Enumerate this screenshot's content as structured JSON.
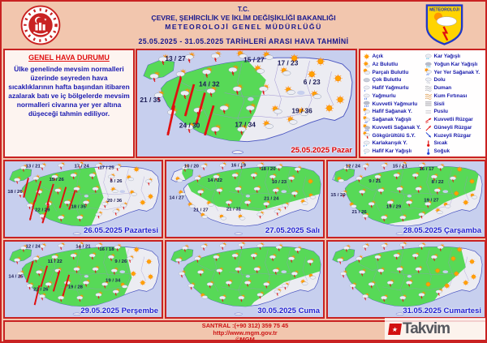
{
  "header": {
    "line1": "T.C.",
    "line2": "ÇEVRE, ŞEHİRCİLİK VE İKLİM DEĞİŞİKLİĞİ BAKANLIĞI",
    "line3": "METEOROLOJİ  GENEL  MÜDÜRLÜĞÜ",
    "dates": "25.05.2025  -  31.05.2025    TARİHLERİ  ARASI  HAVA  TAHMİNİ",
    "shield_text": "METEOROLOJI"
  },
  "general": {
    "title": "GENEL HAVA DURUMU",
    "body": "Ülke genelinde mevsim normalleri üzerinde seyreden hava sıcaklıklarının hafta başından itibaren azalarak batı ve iç bölgelerde mevsim normalleri civarına yer yer altına düşeceği tahmin ediliyor."
  },
  "legend": {
    "columns": [
      [
        {
          "icon": "sun",
          "label": "Açık"
        },
        {
          "icon": "sun-small-cloud",
          "label": "Az Bulutlu"
        },
        {
          "icon": "cloud-sun",
          "label": "Parçalı Bulutlu"
        },
        {
          "icon": "cloud",
          "label": "Çok Bulutlu"
        },
        {
          "icon": "rain-light",
          "label": "Hafif Yağmurlu"
        },
        {
          "icon": "rain",
          "label": "Yağmurlu"
        },
        {
          "icon": "rain-heavy",
          "label": "Kuvvetli Yağmurlu"
        },
        {
          "icon": "shower-light",
          "label": "Hafif Sağanak Y."
        },
        {
          "icon": "shower",
          "label": "Sağanak Yağışlı"
        },
        {
          "icon": "shower-heavy",
          "label": "Kuvvetli Sağanak Y."
        },
        {
          "icon": "thunder",
          "label": "Gökgürültülü S.Y."
        },
        {
          "icon": "sleet",
          "label": "Karlakarışık Y."
        },
        {
          "icon": "snow-light",
          "label": "Hafif Kar Yağışlı"
        }
      ],
      [
        {
          "icon": "snow",
          "label": "Kar Yağışlı"
        },
        {
          "icon": "snow-heavy",
          "label": "Yoğun Kar Yağışlı"
        },
        {
          "icon": "shower-local",
          "label": "Yer Yer Sağanak Y."
        },
        {
          "icon": "hail",
          "label": "Dolu"
        },
        {
          "icon": "smoke",
          "label": "Duman"
        },
        {
          "icon": "sandstorm",
          "label": "Kum Fırtınası"
        },
        {
          "icon": "fog",
          "label": "Sisli"
        },
        {
          "icon": "mist",
          "label": "Puslu"
        },
        {
          "icon": "wind-strong",
          "label": "Kuvvetli Rüzgar"
        },
        {
          "icon": "wind-south",
          "label": "Güneyli Rüzgar"
        },
        {
          "icon": "wind-north",
          "label": "Kuzeyli Rüzgar"
        },
        {
          "icon": "hot",
          "label": "Sıcak"
        },
        {
          "icon": "cold",
          "label": "Soğuk"
        }
      ]
    ]
  },
  "map_style": {
    "sea": "#c7cfee",
    "land": "#ececf2",
    "green": "#57d957",
    "coast": "#4a55c0",
    "province": "#9a8fd0",
    "temp_text": "#1c1c55",
    "arrow": "#e01010"
  },
  "maps": [
    {
      "id": "pazar",
      "date_label": "25.05.2025 Pazar",
      "date_color": "#e00000",
      "green_zone": "nw-and-central-band",
      "icons": "sssppuussssppuusssssppussssppussspp",
      "temps": [
        [
          35,
          10,
          "13 / 27"
        ],
        [
          107,
          11,
          "15 / 27"
        ],
        [
          138,
          14,
          "17 / 23"
        ],
        [
          66,
          34,
          "14 / 32"
        ],
        [
          160,
          32,
          "6 / 23"
        ],
        [
          12,
          49,
          "21 / 35"
        ],
        [
          151,
          59,
          "19 / 36"
        ],
        [
          48,
          73,
          "24 / 30"
        ],
        [
          99,
          72,
          "17 / 34"
        ]
      ],
      "arrows": [
        [
          40,
          26,
          32,
          56
        ],
        [
          52,
          32,
          44,
          62
        ],
        [
          62,
          40,
          54,
          70
        ],
        [
          34,
          52,
          28,
          80
        ],
        [
          70,
          52,
          62,
          80
        ]
      ]
    },
    {
      "id": "pazartesi",
      "date_label": "26.05.2025 Pazartesi",
      "date_color": "#2020d0",
      "green_zone": "west-two-thirds",
      "icons": "sssssgusssssspssssssppusssssgusssss",
      "temps": [
        [
          36,
          8,
          "13 / 21"
        ],
        [
          98,
          8,
          "17 / 24"
        ],
        [
          130,
          10,
          "17 / 25"
        ],
        [
          13,
          42,
          "18 / 26"
        ],
        [
          66,
          26,
          "15 / 26"
        ],
        [
          142,
          28,
          "8 / 26"
        ],
        [
          48,
          66,
          "22 / 29"
        ],
        [
          94,
          62,
          "18 / 35"
        ],
        [
          140,
          54,
          "20 / 36"
        ]
      ],
      "arrows": [
        [
          30,
          22,
          24,
          48
        ],
        [
          46,
          26,
          38,
          54
        ],
        [
          62,
          30,
          54,
          58
        ],
        [
          78,
          34,
          70,
          62
        ],
        [
          38,
          52,
          32,
          78
        ],
        [
          56,
          56,
          48,
          82
        ],
        [
          90,
          38,
          82,
          64
        ]
      ]
    },
    {
      "id": "sali",
      "date_label": "27.05.2025 Salı",
      "date_color": "#2020d0",
      "green_zone": "north-central-band",
      "icons": "ssssssspssssssupsssssspppssssppppssp",
      "temps": [
        [
          32,
          8,
          "10 / 20"
        ],
        [
          92,
          7,
          "16 / 19"
        ],
        [
          130,
          12,
          "18 / 20"
        ],
        [
          62,
          27,
          "14 / 22"
        ],
        [
          144,
          29,
          "10 / 23"
        ],
        [
          13,
          50,
          "14 / 27"
        ],
        [
          134,
          51,
          "21 / 24"
        ],
        [
          44,
          66,
          "21 / 27"
        ],
        [
          86,
          65,
          "21 / 31"
        ]
      ],
      "arrows": []
    },
    {
      "id": "carsamba",
      "date_label": "28.05.2025 Çarşamba",
      "date_color": "#2020d0",
      "green_zone": "central-west-band",
      "icons": "ssssssupssssssussssssuppsssspussssp",
      "temps": [
        [
          32,
          8,
          "12 / 24"
        ],
        [
          92,
          8,
          "15 / 21"
        ],
        [
          126,
          12,
          "16 / 17"
        ],
        [
          60,
          28,
          "9 / 21"
        ],
        [
          140,
          29,
          "8 / 22"
        ],
        [
          13,
          46,
          "15 / 29"
        ],
        [
          132,
          53,
          "19 / 27"
        ],
        [
          40,
          69,
          "21 / 26"
        ],
        [
          84,
          62,
          "19 / 29"
        ]
      ],
      "arrows": []
    },
    {
      "id": "persembe",
      "date_label": "29.05.2025 Perşembe",
      "date_color": "#2020d0",
      "green_zone": "west-three-quarters",
      "icons": "ssssssusssssssussssssuussssspusssss",
      "temps": [
        [
          36,
          8,
          "12 / 24"
        ],
        [
          100,
          8,
          "14 / 21"
        ],
        [
          130,
          12,
          "16 / 18"
        ],
        [
          64,
          28,
          "11 / 22"
        ],
        [
          148,
          28,
          "9 / 26"
        ],
        [
          14,
          48,
          "14 / 25"
        ],
        [
          46,
          65,
          "22 / 26"
        ],
        [
          90,
          62,
          "19 / 28"
        ],
        [
          138,
          53,
          "19 / 34"
        ]
      ],
      "arrows": [
        [
          36,
          26,
          28,
          54
        ],
        [
          54,
          32,
          46,
          60
        ],
        [
          70,
          38,
          62,
          66
        ],
        [
          44,
          58,
          38,
          84
        ],
        [
          82,
          44,
          74,
          72
        ]
      ]
    },
    {
      "id": "cuma",
      "date_label": "30.05.2025 Cuma",
      "date_color": "#2020d0",
      "green_zone": "all-but-southeast",
      "icons": "sssssssssssssssssssssspssssssppsssss",
      "temps": [],
      "arrows": []
    },
    {
      "id": "cumartesi",
      "date_label": "31.05.2025 Cumartesi",
      "date_color": "#2020d0",
      "green_zone": "all-but-east",
      "icons": "ssssssussssssuusssssuuussssuuusssss",
      "temps": [],
      "arrows": []
    }
  ],
  "footer": {
    "line1": "SANTRAL :(+90 312) 359 75 45",
    "line2": "http://www.mgm.gov.tr",
    "line3": "©MGM"
  },
  "watermark": {
    "brand": "Takvim",
    "star": "★"
  }
}
